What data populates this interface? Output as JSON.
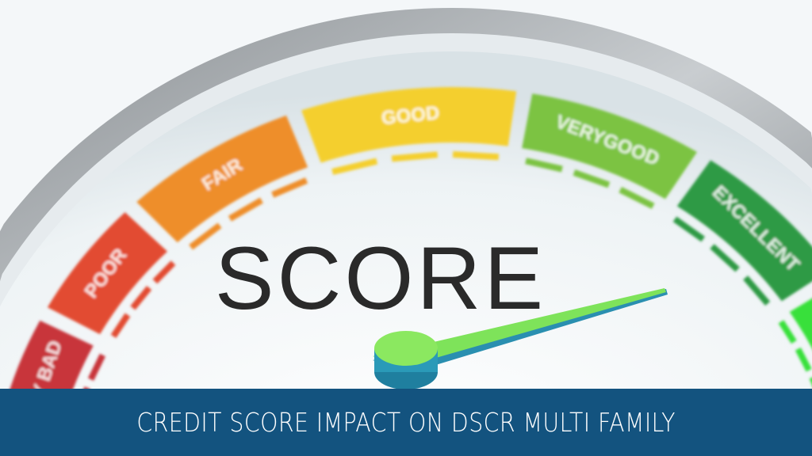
{
  "gauge": {
    "center_label": "SCORE",
    "segments": [
      {
        "label": "VERY BAD",
        "color": "#c8343a"
      },
      {
        "label": "POOR",
        "color": "#e24b33"
      },
      {
        "label": "FAIR",
        "color": "#ee8e2c"
      },
      {
        "label": "GOOD",
        "color": "#f4cf2f"
      },
      {
        "label": "VERYGOOD",
        "color": "#7cc342"
      },
      {
        "label": "EXCELLENT",
        "color": "#2f9a45"
      },
      {
        "label": "",
        "color": "#39e03a"
      }
    ],
    "needle_color": "#7ee35a",
    "needle_points_to": "EXCELLENT"
  },
  "banner": {
    "title": "CREDIT SCORE IMPACT ON DSCR MULTI FAMILY",
    "color": "#13537f"
  }
}
